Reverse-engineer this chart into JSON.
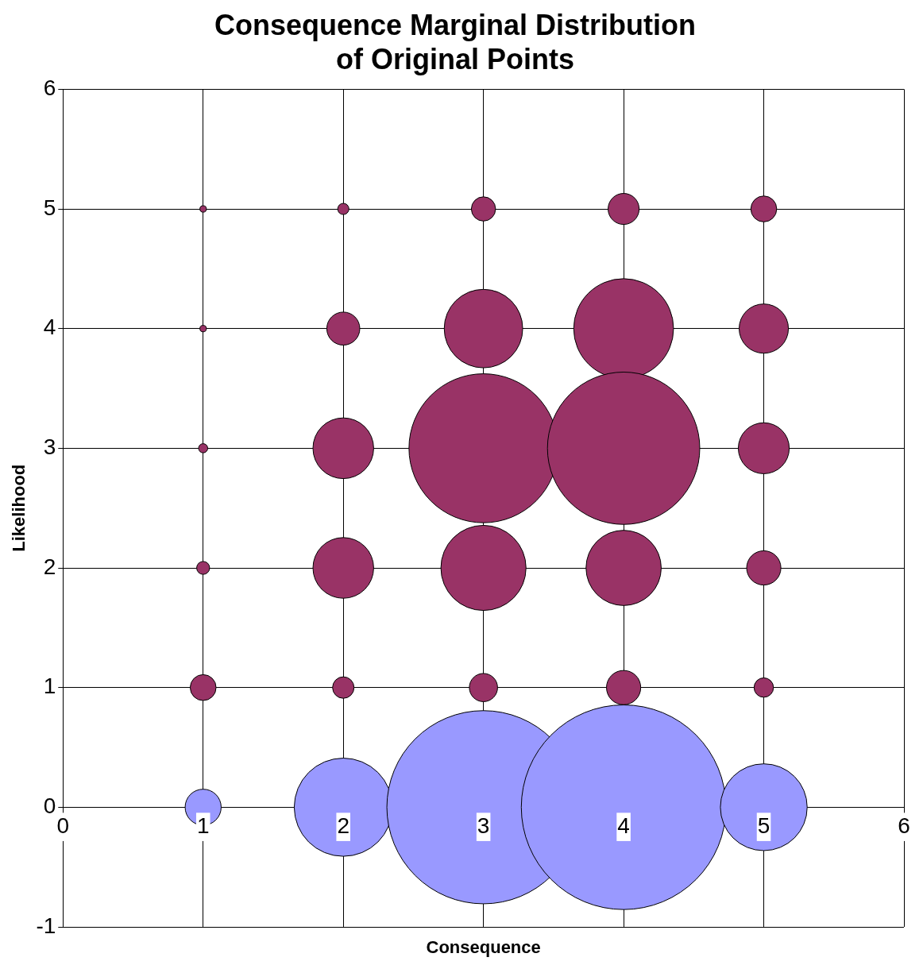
{
  "chart_data": {
    "type": "bubble",
    "title": "Consequence Marginal Distribution\nof Original Points",
    "xlabel": "Consequence",
    "ylabel": "Likelihood",
    "xlim": [
      0,
      6
    ],
    "xticks": [
      0,
      1,
      2,
      3,
      4,
      5,
      6
    ],
    "ylim": [
      -1,
      6
    ],
    "yticks": [
      -1,
      0,
      1,
      2,
      3,
      4,
      5,
      6
    ],
    "grid": true,
    "legend": false,
    "series": [
      {
        "color": "#993366",
        "x": [
          1,
          2,
          3,
          4,
          5,
          1,
          2,
          3,
          4,
          5,
          1,
          2,
          3,
          4,
          5,
          1,
          2,
          3,
          4,
          5,
          1,
          2,
          3,
          4,
          5
        ],
        "values": [
          5,
          5,
          5,
          5,
          5,
          4,
          4,
          4,
          4,
          4,
          3,
          3,
          3,
          3,
          3,
          2,
          2,
          2,
          2,
          2,
          1,
          1,
          1,
          1,
          1
        ],
        "sizes": [
          0.001,
          0.003,
          0.014,
          0.023,
          0.016,
          0.001,
          0.026,
          0.147,
          0.238,
          0.058,
          0.002,
          0.088,
          0.53,
          0.554,
          0.062,
          0.004,
          0.088,
          0.173,
          0.135,
          0.028,
          0.016,
          0.011,
          0.019,
          0.028,
          0.009
        ]
      },
      {
        "color": "#9999ff",
        "x": [
          1,
          2,
          3,
          4,
          5
        ],
        "values": [
          0,
          0,
          0,
          0,
          0
        ],
        "sizes": [
          0.031,
          0.23,
          0.891,
          1,
          0.18
        ]
      }
    ]
  }
}
